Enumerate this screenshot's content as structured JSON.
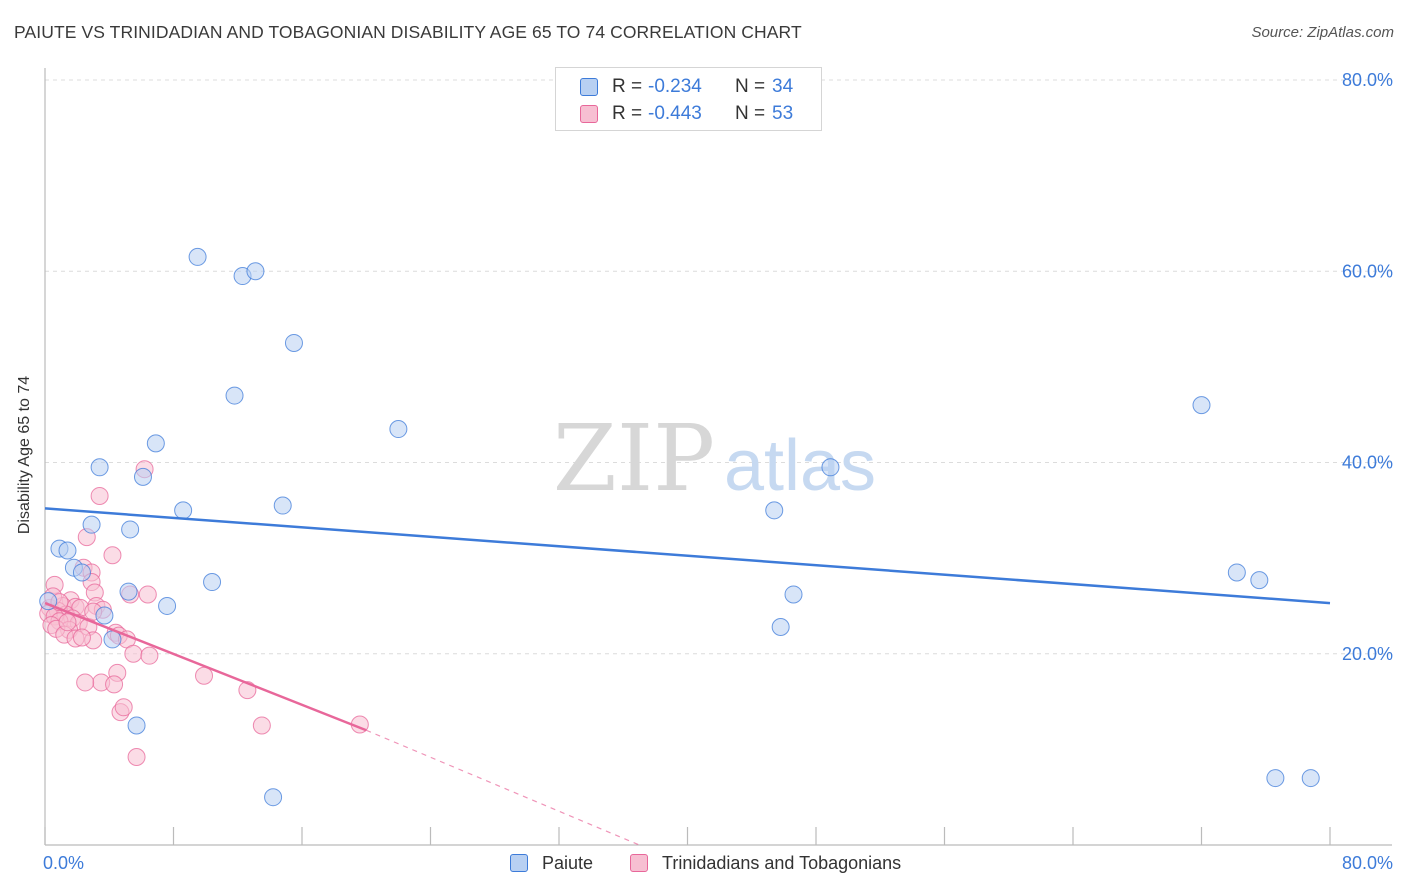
{
  "title": "PAIUTE VS TRINIDADIAN AND TOBAGONIAN DISABILITY AGE 65 TO 74 CORRELATION CHART",
  "source": "Source: ZipAtlas.com",
  "watermark": {
    "zip": "ZIP",
    "atlas": "atlas"
  },
  "colors": {
    "blue": "#3d7bd9",
    "pink": "#e8679a",
    "blue_fill": "#b8d0f2",
    "pink_fill": "#f7bfd2",
    "grid": "#dcdcdc"
  },
  "legend": {
    "series": [
      {
        "r_label": "R =",
        "r_value": "-0.234",
        "n_label": "N =",
        "n_value": "34"
      },
      {
        "r_label": "R =",
        "r_value": "-0.443",
        "n_label": "N =",
        "n_value": "53"
      }
    ]
  },
  "chart_data": {
    "type": "scatter",
    "title": "PAIUTE VS TRINIDADIAN AND TOBAGONIAN DISABILITY AGE 65 TO 74 CORRELATION CHART",
    "xlabel": "",
    "ylabel": "Disability Age 65 to 74",
    "xlim": [
      0,
      80
    ],
    "ylim": [
      0,
      80
    ],
    "x_tick_labels": [
      "0.0%",
      "80.0%"
    ],
    "y_tick_labels": [
      "20.0%",
      "40.0%",
      "60.0%",
      "80.0%"
    ],
    "y_ticks": [
      20,
      40,
      60,
      80
    ],
    "legend_position": "top-center",
    "series": [
      {
        "name": "Paiute",
        "color": "#3d7bd9",
        "points": [
          [
            9.5,
            61.5
          ],
          [
            12.3,
            59.5
          ],
          [
            13.1,
            60.0
          ],
          [
            15.5,
            52.5
          ],
          [
            11.8,
            47.0
          ],
          [
            22.0,
            43.5
          ],
          [
            6.9,
            42.0
          ],
          [
            3.4,
            39.5
          ],
          [
            6.1,
            38.5
          ],
          [
            8.6,
            35.0
          ],
          [
            14.8,
            35.5
          ],
          [
            2.9,
            33.5
          ],
          [
            5.3,
            33.0
          ],
          [
            0.9,
            31.0
          ],
          [
            1.4,
            30.8
          ],
          [
            1.8,
            29.0
          ],
          [
            2.3,
            28.5
          ],
          [
            10.4,
            27.5
          ],
          [
            5.2,
            26.5
          ],
          [
            7.6,
            25.0
          ],
          [
            0.2,
            25.5
          ],
          [
            3.7,
            24.0
          ],
          [
            4.2,
            21.5
          ],
          [
            5.7,
            12.5
          ],
          [
            14.2,
            5.0
          ],
          [
            45.4,
            35.0
          ],
          [
            48.9,
            39.5
          ],
          [
            46.6,
            26.2
          ],
          [
            45.8,
            22.8
          ],
          [
            72.0,
            46.0
          ],
          [
            74.2,
            28.5
          ],
          [
            75.6,
            27.7
          ],
          [
            76.6,
            7.0
          ],
          [
            78.8,
            7.0
          ]
        ],
        "trend": {
          "x": [
            0,
            80
          ],
          "y": [
            35.2,
            25.3
          ]
        }
      },
      {
        "name": "Trinidadians and Tobagonians",
        "color": "#e8679a",
        "points": [
          [
            6.2,
            39.3
          ],
          [
            3.4,
            36.5
          ],
          [
            2.6,
            32.2
          ],
          [
            4.2,
            30.3
          ],
          [
            2.4,
            29.0
          ],
          [
            2.9,
            28.5
          ],
          [
            0.6,
            27.2
          ],
          [
            2.9,
            27.5
          ],
          [
            3.1,
            26.4
          ],
          [
            6.4,
            26.2
          ],
          [
            5.3,
            26.2
          ],
          [
            1.6,
            25.6
          ],
          [
            1.1,
            25.0
          ],
          [
            0.3,
            24.8
          ],
          [
            0.8,
            24.5
          ],
          [
            1.9,
            24.9
          ],
          [
            2.2,
            24.8
          ],
          [
            3.2,
            25.0
          ],
          [
            3.6,
            24.6
          ],
          [
            0.2,
            24.2
          ],
          [
            1.3,
            24.1
          ],
          [
            0.6,
            23.9
          ],
          [
            1.7,
            23.7
          ],
          [
            0.9,
            23.4
          ],
          [
            2.1,
            23.2
          ],
          [
            0.4,
            23.0
          ],
          [
            1.5,
            22.5
          ],
          [
            2.7,
            22.8
          ],
          [
            0.7,
            22.6
          ],
          [
            1.2,
            22.0
          ],
          [
            1.9,
            21.6
          ],
          [
            3.0,
            21.4
          ],
          [
            4.4,
            22.2
          ],
          [
            4.6,
            21.9
          ],
          [
            5.1,
            21.5
          ],
          [
            5.5,
            20.0
          ],
          [
            6.5,
            19.8
          ],
          [
            4.5,
            18.0
          ],
          [
            3.5,
            17.0
          ],
          [
            4.3,
            16.8
          ],
          [
            2.5,
            17.0
          ],
          [
            9.9,
            17.7
          ],
          [
            12.6,
            16.2
          ],
          [
            4.7,
            13.9
          ],
          [
            4.9,
            14.4
          ],
          [
            13.5,
            12.5
          ],
          [
            19.6,
            12.6
          ],
          [
            5.7,
            9.2
          ],
          [
            0.5,
            26.0
          ],
          [
            1.4,
            23.3
          ],
          [
            2.3,
            21.7
          ],
          [
            3.0,
            24.4
          ],
          [
            0.9,
            25.4
          ]
        ],
        "trend": {
          "x": [
            0,
            20
          ],
          "y": [
            25.3,
            12.0
          ]
        },
        "trend_extension": {
          "x": [
            20,
            37
          ],
          "y": [
            12.0,
            0.0
          ]
        }
      }
    ]
  },
  "bottom_legend": [
    {
      "label": "Paiute"
    },
    {
      "label": "Trinidadians and Tobagonians"
    }
  ]
}
